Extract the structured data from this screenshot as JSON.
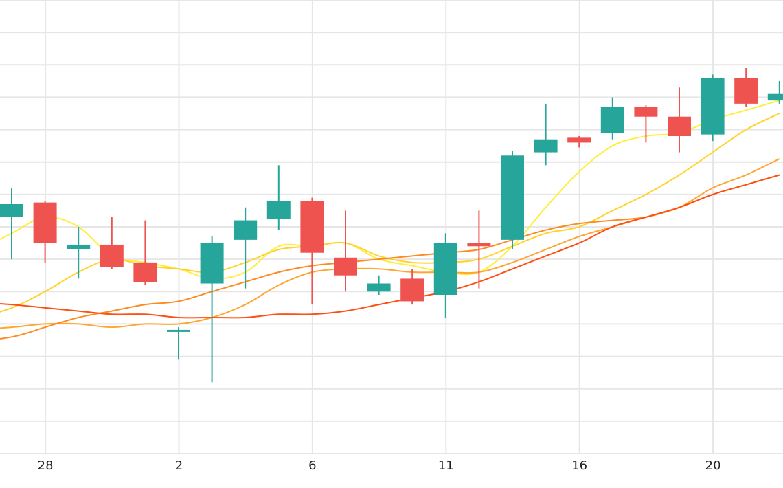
{
  "colors": {
    "background": "#ffffff",
    "grid": "#e6e6e6",
    "up": "#26a69a",
    "down": "#ef5350",
    "text": "#222222"
  },
  "chart_data": {
    "type": "candlestick",
    "title": "",
    "xlabel": "",
    "ylabel": "",
    "grid": true,
    "legend": "none",
    "x_ticks": [
      "28",
      "2",
      "6",
      "11",
      "16",
      "20"
    ],
    "tick_day_index": [
      1,
      5,
      9,
      13,
      17,
      21
    ],
    "ylim": [
      0,
      14
    ],
    "candles": [
      {
        "day": 0,
        "open": 7.3,
        "close": 7.7,
        "high": 8.2,
        "low": 6.0
      },
      {
        "day": 1,
        "open": 7.75,
        "close": 6.5,
        "high": 7.8,
        "low": 5.9
      },
      {
        "day": 2,
        "open": 6.3,
        "close": 6.45,
        "high": 7.0,
        "low": 5.4
      },
      {
        "day": 3,
        "open": 6.45,
        "close": 5.75,
        "high": 7.3,
        "low": 5.7
      },
      {
        "day": 4,
        "open": 5.9,
        "close": 5.3,
        "high": 7.2,
        "low": 5.2
      },
      {
        "day": 5,
        "open": 3.8,
        "close": 3.82,
        "high": 3.9,
        "low": 2.9
      },
      {
        "day": 6,
        "open": 5.25,
        "close": 6.5,
        "high": 6.7,
        "low": 2.2
      },
      {
        "day": 7,
        "open": 6.6,
        "close": 7.2,
        "high": 7.6,
        "low": 5.1
      },
      {
        "day": 8,
        "open": 7.25,
        "close": 7.8,
        "high": 8.9,
        "low": 6.9
      },
      {
        "day": 9,
        "open": 7.8,
        "close": 6.2,
        "high": 7.9,
        "low": 4.6
      },
      {
        "day": 10,
        "open": 6.05,
        "close": 5.5,
        "high": 7.5,
        "low": 5.0
      },
      {
        "day": 11,
        "open": 5.0,
        "close": 5.25,
        "high": 5.5,
        "low": 4.9
      },
      {
        "day": 12,
        "open": 5.4,
        "close": 4.7,
        "high": 5.7,
        "low": 4.6
      },
      {
        "day": 13,
        "open": 4.9,
        "close": 6.5,
        "high": 6.8,
        "low": 4.2
      },
      {
        "day": 14,
        "open": 6.5,
        "close": 6.4,
        "high": 7.5,
        "low": 5.1
      },
      {
        "day": 15,
        "open": 6.6,
        "close": 9.2,
        "high": 9.35,
        "low": 6.3
      },
      {
        "day": 16,
        "open": 9.3,
        "close": 9.7,
        "high": 10.8,
        "low": 8.9
      },
      {
        "day": 17,
        "open": 9.75,
        "close": 9.6,
        "high": 9.8,
        "low": 9.45
      },
      {
        "day": 18,
        "open": 9.9,
        "close": 10.7,
        "high": 11.0,
        "low": 9.7
      },
      {
        "day": 19,
        "open": 10.7,
        "close": 10.4,
        "high": 10.75,
        "low": 9.6
      },
      {
        "day": 20,
        "open": 10.4,
        "close": 9.8,
        "high": 11.3,
        "low": 9.3
      },
      {
        "day": 21,
        "open": 9.85,
        "close": 11.6,
        "high": 11.7,
        "low": 9.65
      },
      {
        "day": 22,
        "open": 11.6,
        "close": 10.8,
        "high": 11.9,
        "low": 10.7
      },
      {
        "day": 23,
        "open": 10.9,
        "close": 11.1,
        "high": 11.5,
        "low": 10.8
      }
    ],
    "series": [
      {
        "color": "#ffee3a",
        "points": [
          [
            -1.5,
            6.0
          ],
          [
            0,
            6.8
          ],
          [
            1,
            7.3
          ],
          [
            2,
            7.0
          ],
          [
            3,
            6.1
          ],
          [
            4,
            5.9
          ],
          [
            5,
            5.7
          ],
          [
            6,
            5.4
          ],
          [
            7,
            5.6
          ],
          [
            8,
            6.4
          ],
          [
            9,
            6.4
          ],
          [
            10,
            6.5
          ],
          [
            11,
            6.0
          ],
          [
            12,
            5.8
          ],
          [
            13,
            5.6
          ],
          [
            14,
            5.6
          ],
          [
            15,
            6.4
          ],
          [
            16,
            7.6
          ],
          [
            17,
            8.7
          ],
          [
            18,
            9.5
          ],
          [
            19,
            9.8
          ],
          [
            20,
            9.9
          ],
          [
            21,
            10.3
          ],
          [
            22,
            10.6
          ],
          [
            23,
            10.9
          ]
        ]
      },
      {
        "color": "#ffd32a",
        "points": [
          [
            -1.5,
            4.0
          ],
          [
            0,
            4.5
          ],
          [
            1,
            5.0
          ],
          [
            2,
            5.6
          ],
          [
            3,
            6.0
          ],
          [
            4,
            5.8
          ],
          [
            5,
            5.7
          ],
          [
            6,
            5.6
          ],
          [
            7,
            5.9
          ],
          [
            8,
            6.3
          ],
          [
            9,
            6.4
          ],
          [
            10,
            6.5
          ],
          [
            11,
            6.1
          ],
          [
            12,
            5.9
          ],
          [
            13,
            5.9
          ],
          [
            14,
            6.0
          ],
          [
            15,
            6.4
          ],
          [
            16,
            6.8
          ],
          [
            17,
            7.0
          ],
          [
            18,
            7.5
          ],
          [
            19,
            8.0
          ],
          [
            20,
            8.6
          ],
          [
            21,
            9.3
          ],
          [
            22,
            10.0
          ],
          [
            23,
            10.5
          ]
        ]
      },
      {
        "color": "#ffa630",
        "points": [
          [
            -1.5,
            3.8
          ],
          [
            0,
            3.9
          ],
          [
            1,
            4.0
          ],
          [
            2,
            4.0
          ],
          [
            3,
            3.9
          ],
          [
            4,
            4.0
          ],
          [
            5,
            4.0
          ],
          [
            6,
            4.2
          ],
          [
            7,
            4.6
          ],
          [
            8,
            5.2
          ],
          [
            9,
            5.6
          ],
          [
            10,
            5.7
          ],
          [
            11,
            5.7
          ],
          [
            12,
            5.6
          ],
          [
            13,
            5.6
          ],
          [
            14,
            5.6
          ],
          [
            15,
            5.9
          ],
          [
            16,
            6.3
          ],
          [
            17,
            6.7
          ],
          [
            18,
            7.0
          ],
          [
            19,
            7.3
          ],
          [
            20,
            7.6
          ],
          [
            21,
            8.2
          ],
          [
            22,
            8.6
          ],
          [
            23,
            9.1
          ]
        ]
      },
      {
        "color": "#ff8a1f",
        "points": [
          [
            -1.5,
            3.4
          ],
          [
            0,
            3.6
          ],
          [
            1,
            3.9
          ],
          [
            2,
            4.2
          ],
          [
            3,
            4.4
          ],
          [
            4,
            4.6
          ],
          [
            5,
            4.7
          ],
          [
            6,
            5.0
          ],
          [
            7,
            5.3
          ],
          [
            8,
            5.6
          ],
          [
            9,
            5.8
          ],
          [
            10,
            5.9
          ],
          [
            11,
            6.0
          ],
          [
            12,
            6.1
          ],
          [
            13,
            6.2
          ],
          [
            14,
            6.3
          ],
          [
            15,
            6.6
          ],
          [
            16,
            6.9
          ],
          [
            17,
            7.1
          ],
          [
            18,
            7.2
          ],
          [
            19,
            7.3
          ],
          [
            20,
            7.6
          ],
          [
            21,
            8.0
          ],
          [
            22,
            8.3
          ],
          [
            23,
            8.6
          ]
        ]
      },
      {
        "color": "#ff4e12",
        "points": [
          [
            -1.5,
            4.7
          ],
          [
            0,
            4.6
          ],
          [
            1,
            4.5
          ],
          [
            2,
            4.4
          ],
          [
            3,
            4.3
          ],
          [
            4,
            4.3
          ],
          [
            5,
            4.2
          ],
          [
            6,
            4.2
          ],
          [
            7,
            4.2
          ],
          [
            8,
            4.3
          ],
          [
            9,
            4.3
          ],
          [
            10,
            4.4
          ],
          [
            11,
            4.6
          ],
          [
            12,
            4.8
          ],
          [
            13,
            5.0
          ],
          [
            14,
            5.3
          ],
          [
            15,
            5.7
          ],
          [
            16,
            6.1
          ],
          [
            17,
            6.5
          ],
          [
            18,
            7.0
          ],
          [
            19,
            7.3
          ],
          [
            20,
            7.6
          ],
          [
            21,
            8.0
          ],
          [
            22,
            8.3
          ],
          [
            23,
            8.6
          ]
        ]
      }
    ]
  }
}
